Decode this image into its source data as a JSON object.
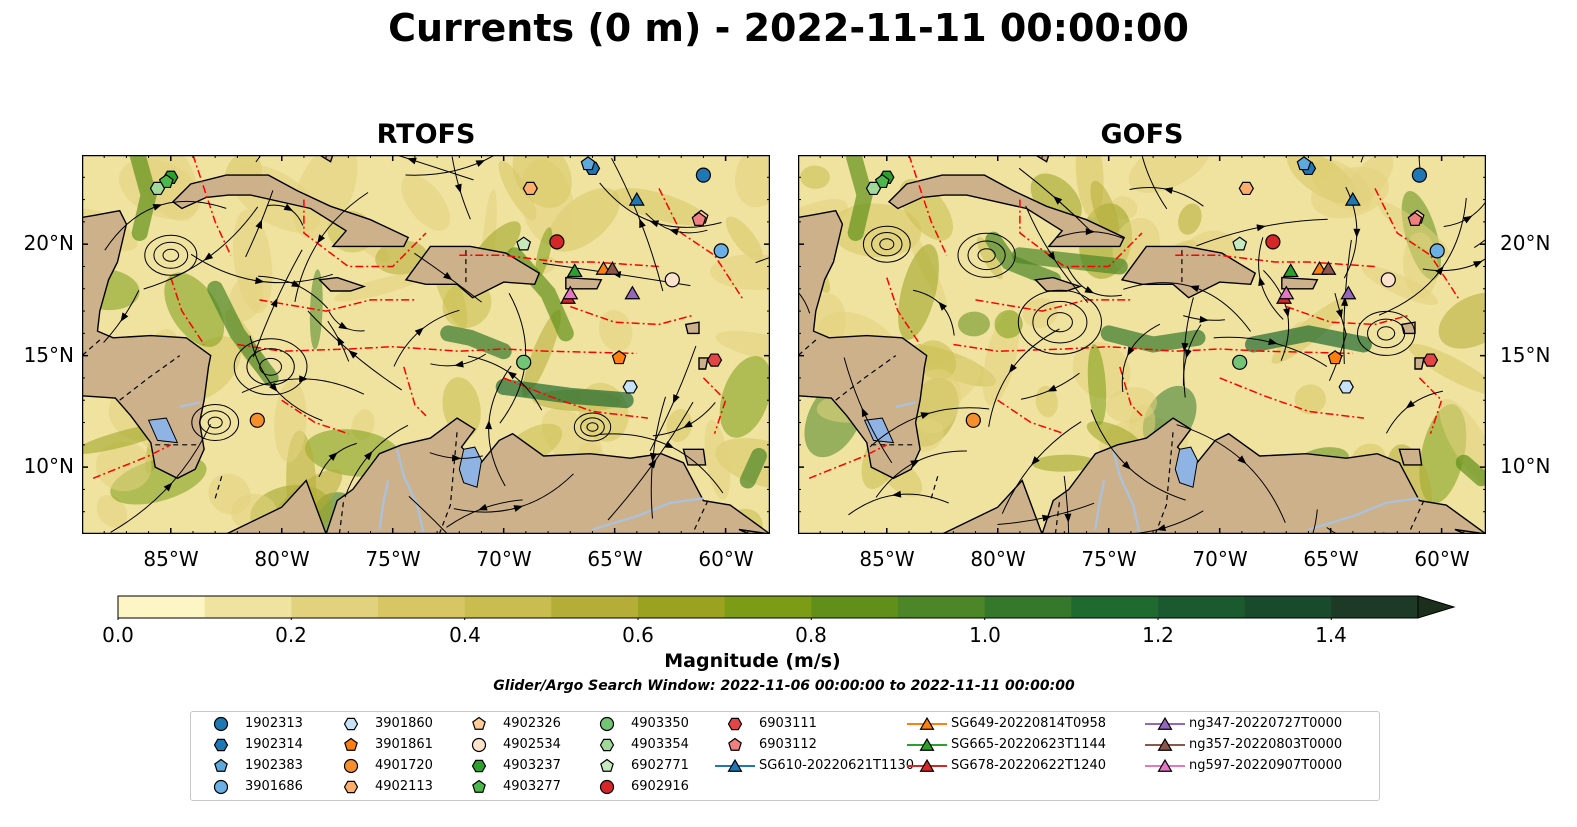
{
  "title": "Currents (0 m) - 2022-11-11 00:00:00",
  "panels": [
    {
      "title": "RTOFS"
    },
    {
      "title": "GOFS"
    }
  ],
  "colors": {
    "land": "#cdb18b",
    "lakes": "#8fb4e3",
    "rivers": "#a9c3df",
    "eez_lines": "#ff0000",
    "colormap": [
      "#fdf5c4",
      "#f0e3a0",
      "#e2d27e",
      "#d7c663",
      "#c9bd4f",
      "#b4ad37",
      "#9aa220",
      "#7c9c15",
      "#61901a",
      "#4d8626",
      "#35782b",
      "#1f6a2f",
      "#1a5a2e",
      "#1a4a2c",
      "#1c3a25",
      "#1c2e1c"
    ]
  },
  "chart_data": {
    "type": "heatmap",
    "variable": "Magnitude (m/s)",
    "colorbar": {
      "label": "Magnitude (m/s)",
      "levels": [
        0.0,
        0.1,
        0.2,
        0.3,
        0.4,
        0.5,
        0.6,
        0.7,
        0.8,
        0.9,
        1.0,
        1.1,
        1.2,
        1.3,
        1.4,
        1.5
      ],
      "ticks": [
        "0.0",
        "0.2",
        "0.4",
        "0.6",
        "0.8",
        "1.0",
        "1.2",
        "1.4"
      ],
      "extend": "max"
    },
    "x_axis": {
      "ticks": [
        "85°W",
        "80°W",
        "75°W",
        "70°W",
        "65°W",
        "60°W"
      ],
      "range": [
        -89,
        -58
      ]
    },
    "y_axis": {
      "ticks": [
        "10°N",
        "15°N",
        "20°N"
      ],
      "range": [
        7,
        24
      ]
    },
    "search_window": "Glider/Argo Search Window: 2022-11-06 00:00:00 to 2022-11-11 00:00:00",
    "platforms": [
      {
        "id": "1902313",
        "kind": "argo",
        "marker": "circle",
        "color": "#1f77b4",
        "lon": -61.0,
        "lat": 23.1
      },
      {
        "id": "1902314",
        "kind": "argo",
        "marker": "hexagon",
        "color": "#1f77b4",
        "lon": -66.0,
        "lat": 23.4
      },
      {
        "id": "1902383",
        "kind": "argo",
        "marker": "pentagon",
        "color": "#5da8dc",
        "lon": -66.2,
        "lat": 23.6
      },
      {
        "id": "3901686",
        "kind": "argo",
        "marker": "circle",
        "color": "#6ab0e4",
        "lon": -60.2,
        "lat": 19.7
      },
      {
        "id": "3901860",
        "kind": "argo",
        "marker": "hexagon",
        "color": "#c6e2f7",
        "lon": -64.3,
        "lat": 13.6
      },
      {
        "id": "3901861",
        "kind": "argo",
        "marker": "pentagon",
        "color": "#ff7f0e",
        "lon": -64.8,
        "lat": 14.9
      },
      {
        "id": "4901720",
        "kind": "argo",
        "marker": "circle",
        "color": "#f58f2e",
        "lon": -81.1,
        "lat": 12.1
      },
      {
        "id": "4902113",
        "kind": "argo",
        "marker": "hexagon",
        "color": "#fdae6b",
        "lon": -68.8,
        "lat": 22.5
      },
      {
        "id": "4902326",
        "kind": "argo",
        "marker": "pentagon",
        "color": "#fdcc9a",
        "lon": -61.1,
        "lat": 21.2
      },
      {
        "id": "4902534",
        "kind": "argo",
        "marker": "circle",
        "color": "#fde3cc",
        "lon": -62.4,
        "lat": 18.4
      },
      {
        "id": "4903237",
        "kind": "argo",
        "marker": "hexagon",
        "color": "#2ca02c",
        "lon": -85.0,
        "lat": 23.0
      },
      {
        "id": "4903277",
        "kind": "argo",
        "marker": "pentagon",
        "color": "#4cb84c",
        "lon": -85.2,
        "lat": 22.8
      },
      {
        "id": "4903350",
        "kind": "argo",
        "marker": "circle",
        "color": "#74c476",
        "lon": -69.1,
        "lat": 14.7
      },
      {
        "id": "4903354",
        "kind": "argo",
        "marker": "hexagon",
        "color": "#a1d99b",
        "lon": -85.6,
        "lat": 22.5
      },
      {
        "id": "6902771",
        "kind": "argo",
        "marker": "pentagon",
        "color": "#c7e9c0",
        "lon": -69.1,
        "lat": 20.0
      },
      {
        "id": "6902916",
        "kind": "argo",
        "marker": "circle",
        "color": "#d62728",
        "lon": -67.6,
        "lat": 20.1
      },
      {
        "id": "6903111",
        "kind": "argo",
        "marker": "hexagon",
        "color": "#e34546",
        "lon": -60.5,
        "lat": 14.8
      },
      {
        "id": "6903112",
        "kind": "argo",
        "marker": "pentagon",
        "color": "#f07f7f",
        "lon": -61.2,
        "lat": 21.1
      },
      {
        "id": "SG610-20220621T1130",
        "kind": "glider",
        "marker": "triangle",
        "color": "#1f77b4",
        "lon": -64.0,
        "lat": 22.0,
        "line": true
      },
      {
        "id": "SG649-20220814T0958",
        "kind": "glider",
        "marker": "triangle",
        "color": "#ff7f0e",
        "lon": -65.5,
        "lat": 18.9,
        "line": true
      },
      {
        "id": "SG665-20220623T1144",
        "kind": "glider",
        "marker": "triangle",
        "color": "#2ca02c",
        "lon": -66.8,
        "lat": 18.8,
        "line": true
      },
      {
        "id": "SG678-20220622T1240",
        "kind": "glider",
        "marker": "triangle",
        "color": "#d62728",
        "lon": -67.1,
        "lat": 17.6,
        "line": true
      },
      {
        "id": "ng347-20220727T0000",
        "kind": "glider",
        "marker": "triangle",
        "color": "#9467bd",
        "lon": -64.2,
        "lat": 17.8,
        "line": true
      },
      {
        "id": "ng357-20220803T0000",
        "kind": "glider",
        "marker": "triangle",
        "color": "#8c564b",
        "lon": -65.1,
        "lat": 18.9,
        "line": true
      },
      {
        "id": "ng597-20220907T0000",
        "kind": "glider",
        "marker": "triangle",
        "color": "#e377c2",
        "lon": -67.0,
        "lat": 17.8,
        "line": true
      }
    ]
  }
}
